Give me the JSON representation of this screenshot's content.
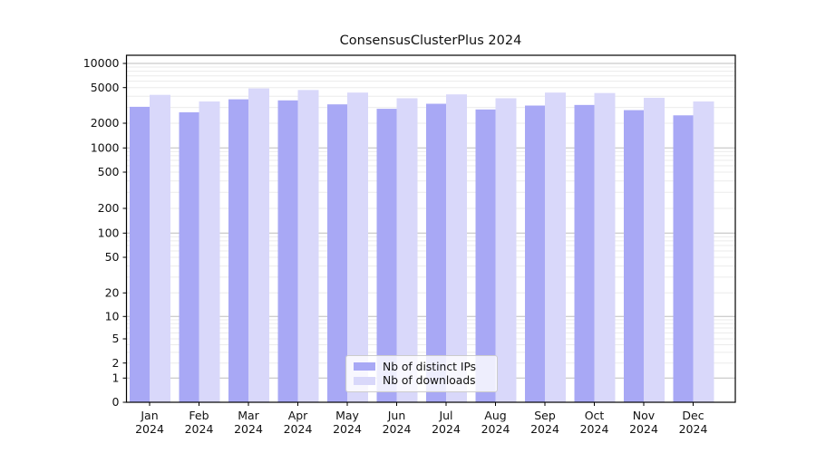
{
  "title": "ConsensusClusterPlus 2024",
  "legend": {
    "items": [
      {
        "label": "Nb of distinct IPs",
        "color": "#a8a8f5"
      },
      {
        "label": "Nb of downloads",
        "color": "#d9d8fa"
      }
    ]
  },
  "chart_data": {
    "type": "bar",
    "title": "ConsensusClusterPlus 2024",
    "categories": [
      "Jan",
      "Feb",
      "Mar",
      "Apr",
      "May",
      "Jun",
      "Jul",
      "Aug",
      "Sep",
      "Oct",
      "Nov",
      "Dec"
    ],
    "category_year": "2024",
    "series": [
      {
        "name": "Nb of distinct IPs",
        "color": "#a8a8f5",
        "values": [
          3050,
          2650,
          3700,
          3600,
          3250,
          2900,
          3300,
          2850,
          3150,
          3200,
          2800,
          2450
        ]
      },
      {
        "name": "Nb of downloads",
        "color": "#d9d8fa",
        "values": [
          4150,
          3500,
          4900,
          4700,
          4400,
          3800,
          4200,
          3800,
          4400,
          4350,
          3850,
          3500
        ]
      }
    ],
    "xlabel": "",
    "ylabel": "",
    "yscale": "symlog",
    "yticks": [
      0,
      1,
      2,
      5,
      10,
      20,
      50,
      100,
      200,
      500,
      1000,
      2000,
      5000,
      10000
    ],
    "ylim": [
      0,
      12000
    ],
    "grid": true,
    "legend_position": "lower center",
    "colors": {
      "axis": "#000000",
      "major_grid": "#bdbdbd",
      "minor_grid": "#ebebeb",
      "text": "#111111"
    }
  }
}
